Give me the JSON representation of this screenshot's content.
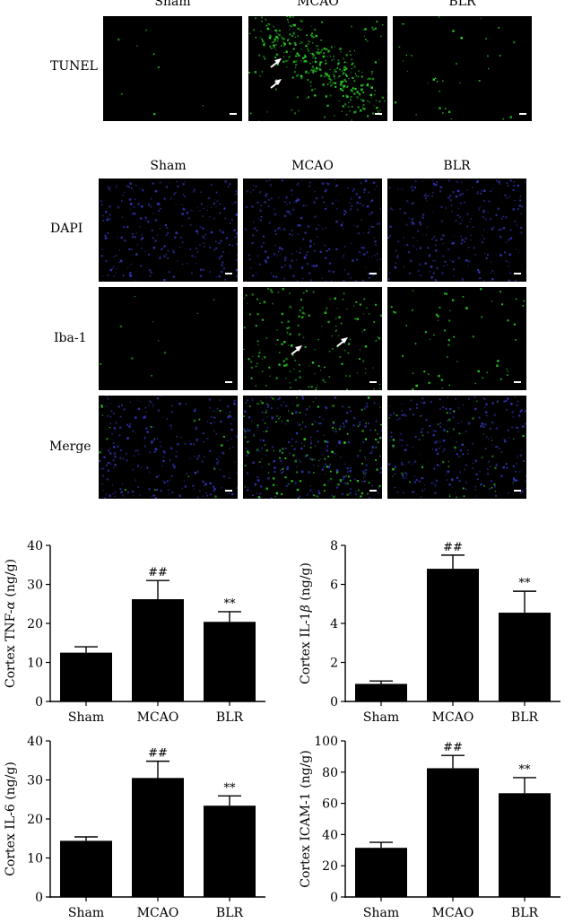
{
  "tunel_section": {
    "row_label": "TUNEL",
    "columns": [
      "Sham",
      "MCAO",
      "BLR"
    ]
  },
  "iba_section": {
    "columns": [
      "Sham",
      "MCAO",
      "BLR"
    ],
    "rows": [
      "DAPI",
      "Iba-1",
      "Merge"
    ]
  },
  "colors": {
    "green_signal": "#2bd62b",
    "blue_signal": "#3236b8",
    "bar": "#000000",
    "arrow": "#ffffff"
  },
  "chart_data": [
    {
      "type": "bar",
      "ylabel_prefix": "Cortex TNF-",
      "ylabel_greek": "α",
      "ylabel_suffix": " (ng/g)",
      "categories": [
        "Sham",
        "MCAO",
        "BLR"
      ],
      "values": [
        12.5,
        26.2,
        20.4
      ],
      "errors": [
        1.5,
        4.8,
        2.6
      ],
      "annotations": [
        "",
        "##",
        "**"
      ],
      "ylim": [
        0,
        40
      ],
      "yticks": [
        0,
        10,
        20,
        30,
        40
      ]
    },
    {
      "type": "bar",
      "ylabel_prefix": "Cortex IL-1",
      "ylabel_greek": "β",
      "ylabel_suffix": " (ng/g)",
      "categories": [
        "Sham",
        "MCAO",
        "BLR"
      ],
      "values": [
        0.9,
        6.8,
        4.55
      ],
      "errors": [
        0.15,
        0.7,
        1.1
      ],
      "annotations": [
        "",
        "##",
        "**"
      ],
      "ylim": [
        0,
        8
      ],
      "yticks": [
        0,
        2,
        4,
        6,
        8
      ]
    },
    {
      "type": "bar",
      "ylabel_prefix": "Cortex IL-6 (ng/g)",
      "ylabel_greek": "",
      "ylabel_suffix": "",
      "categories": [
        "Sham",
        "MCAO",
        "BLR"
      ],
      "values": [
        14.4,
        30.5,
        23.4
      ],
      "errors": [
        1.0,
        4.3,
        2.5
      ],
      "annotations": [
        "",
        "##",
        "**"
      ],
      "ylim": [
        0,
        40
      ],
      "yticks": [
        0,
        10,
        20,
        30,
        40
      ]
    },
    {
      "type": "bar",
      "ylabel_prefix": "Cortex ICAM-1 (ng/g)",
      "ylabel_greek": "",
      "ylabel_suffix": "",
      "categories": [
        "Sham",
        "MCAO",
        "BLR"
      ],
      "values": [
        31.5,
        82.5,
        66.5
      ],
      "errors": [
        3.5,
        8.2,
        10.0
      ],
      "annotations": [
        "",
        "##",
        "**"
      ],
      "ylim": [
        0,
        100
      ],
      "yticks": [
        0,
        20,
        40,
        60,
        80,
        100
      ]
    }
  ]
}
